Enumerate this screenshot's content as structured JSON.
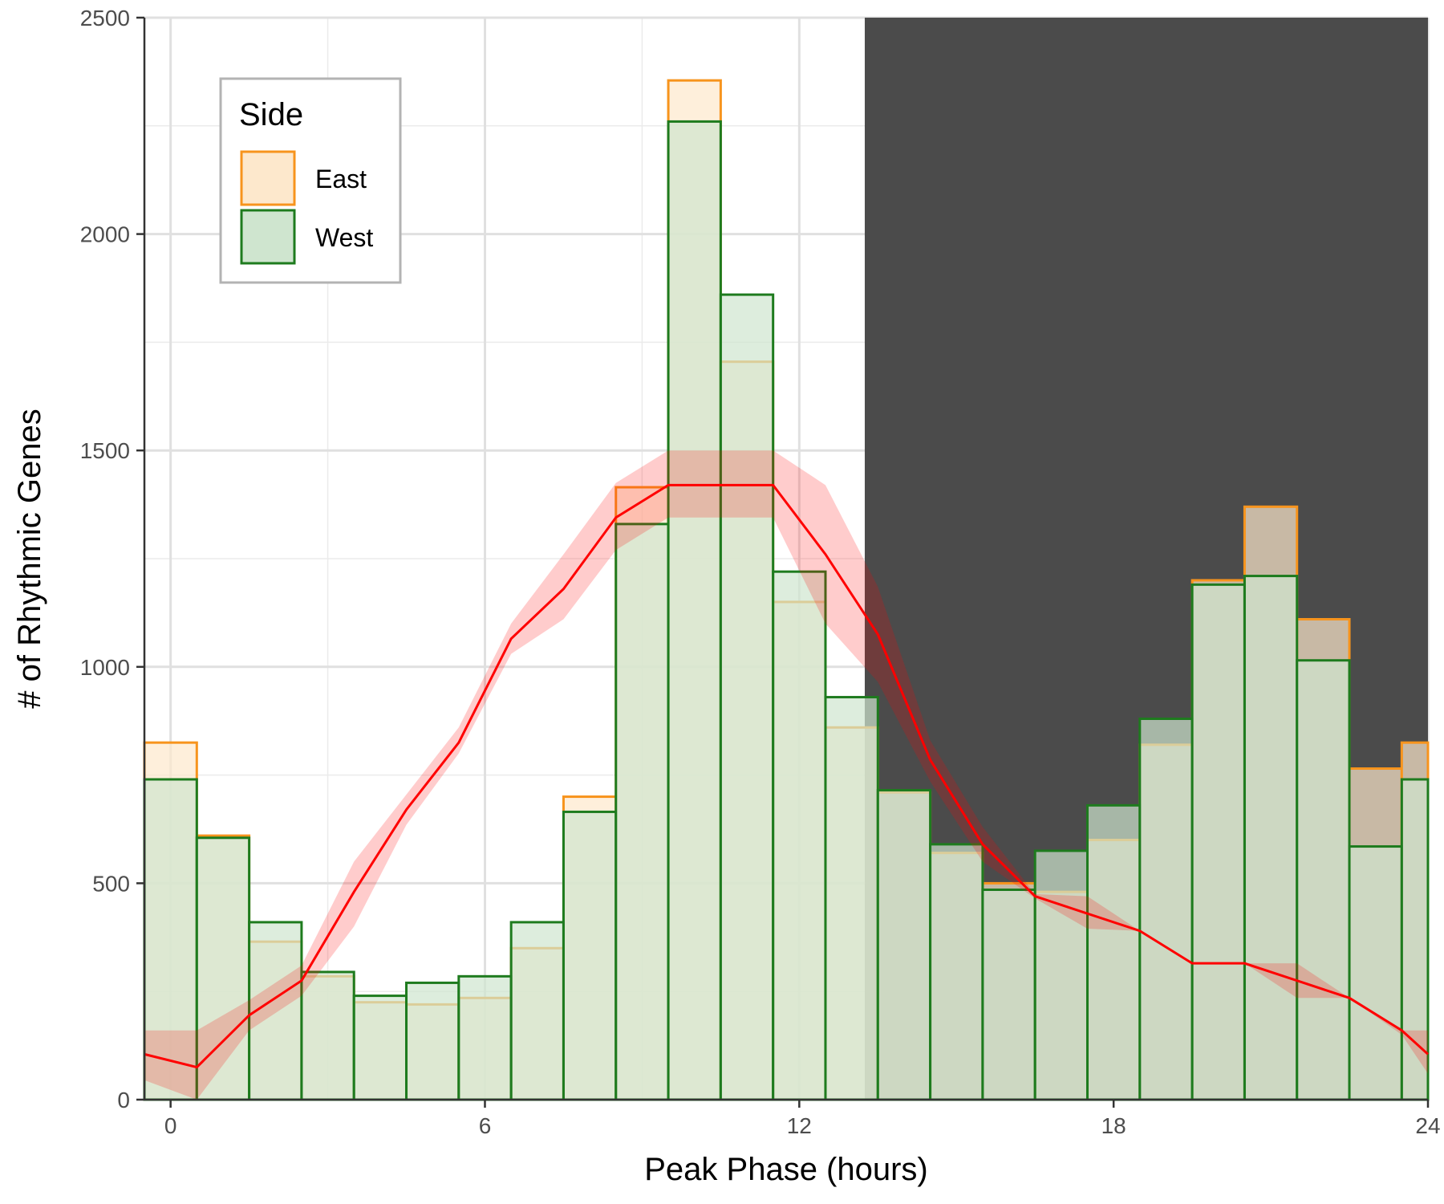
{
  "chart_data": {
    "type": "bar",
    "xlabel": "Peak Phase (hours)",
    "ylabel": "# of Rhythmic Genes",
    "xlim": [
      -0.5,
      24
    ],
    "ylim": [
      0,
      2500
    ],
    "x_ticks": [
      "0",
      "6",
      "12",
      "18",
      "24"
    ],
    "y_ticks": [
      "0",
      "500",
      "1000",
      "1500",
      "2000",
      "2500"
    ],
    "grid": true,
    "dark_period": [
      13.25,
      24
    ],
    "legend": {
      "title": "Side",
      "position": "top-left"
    },
    "bin_edges": [
      -0.5,
      0.5,
      1.5,
      2.5,
      3.5,
      4.5,
      5.5,
      6.5,
      7.5,
      8.5,
      9.5,
      10.5,
      11.5,
      12.5,
      13.5,
      14.5,
      15.5,
      16.5,
      17.5,
      18.5,
      19.5,
      20.5,
      21.5,
      22.5,
      23.5,
      24
    ],
    "series": [
      {
        "name": "East",
        "color": "#f7941d",
        "fill": "#fde8cc",
        "values": [
          825,
          610,
          365,
          285,
          225,
          220,
          235,
          350,
          700,
          1415,
          2355,
          1705,
          1150,
          860,
          710,
          570,
          500,
          480,
          600,
          820,
          1200,
          1370,
          1110,
          765,
          825
        ]
      },
      {
        "name": "West",
        "color": "#1e7b1e",
        "fill": "#cfe5cf",
        "values": [
          740,
          605,
          410,
          295,
          240,
          270,
          285,
          410,
          665,
          1330,
          2260,
          1860,
          1220,
          930,
          715,
          590,
          485,
          575,
          680,
          880,
          1190,
          1210,
          1015,
          585,
          740
        ]
      }
    ],
    "trend_line": {
      "color": "#ff0000",
      "x": [
        -0.5,
        0.5,
        1.5,
        2.5,
        3.5,
        4.5,
        5.5,
        6.5,
        7.5,
        8.5,
        9.5,
        10.5,
        11.5,
        12.5,
        13.5,
        14.5,
        15.5,
        16.5,
        17.5,
        18.5,
        19.5,
        20.5,
        21.5,
        22.5,
        23.5,
        24
      ],
      "y": [
        105,
        75,
        195,
        275,
        480,
        670,
        825,
        1065,
        1180,
        1345,
        1420,
        1420,
        1420,
        1260,
        1075,
        785,
        590,
        470,
        430,
        390,
        315,
        315,
        275,
        235,
        160,
        105
      ],
      "lower": [
        45,
        0,
        160,
        240,
        400,
        635,
        800,
        1030,
        1110,
        1270,
        1345,
        1345,
        1345,
        1100,
        965,
        735,
        550,
        465,
        395,
        390,
        315,
        315,
        235,
        235,
        150,
        60
      ],
      "upper": [
        160,
        160,
        230,
        310,
        550,
        705,
        860,
        1100,
        1260,
        1425,
        1500,
        1500,
        1500,
        1420,
        1185,
        830,
        630,
        475,
        470,
        390,
        315,
        315,
        315,
        235,
        160,
        160
      ]
    }
  }
}
